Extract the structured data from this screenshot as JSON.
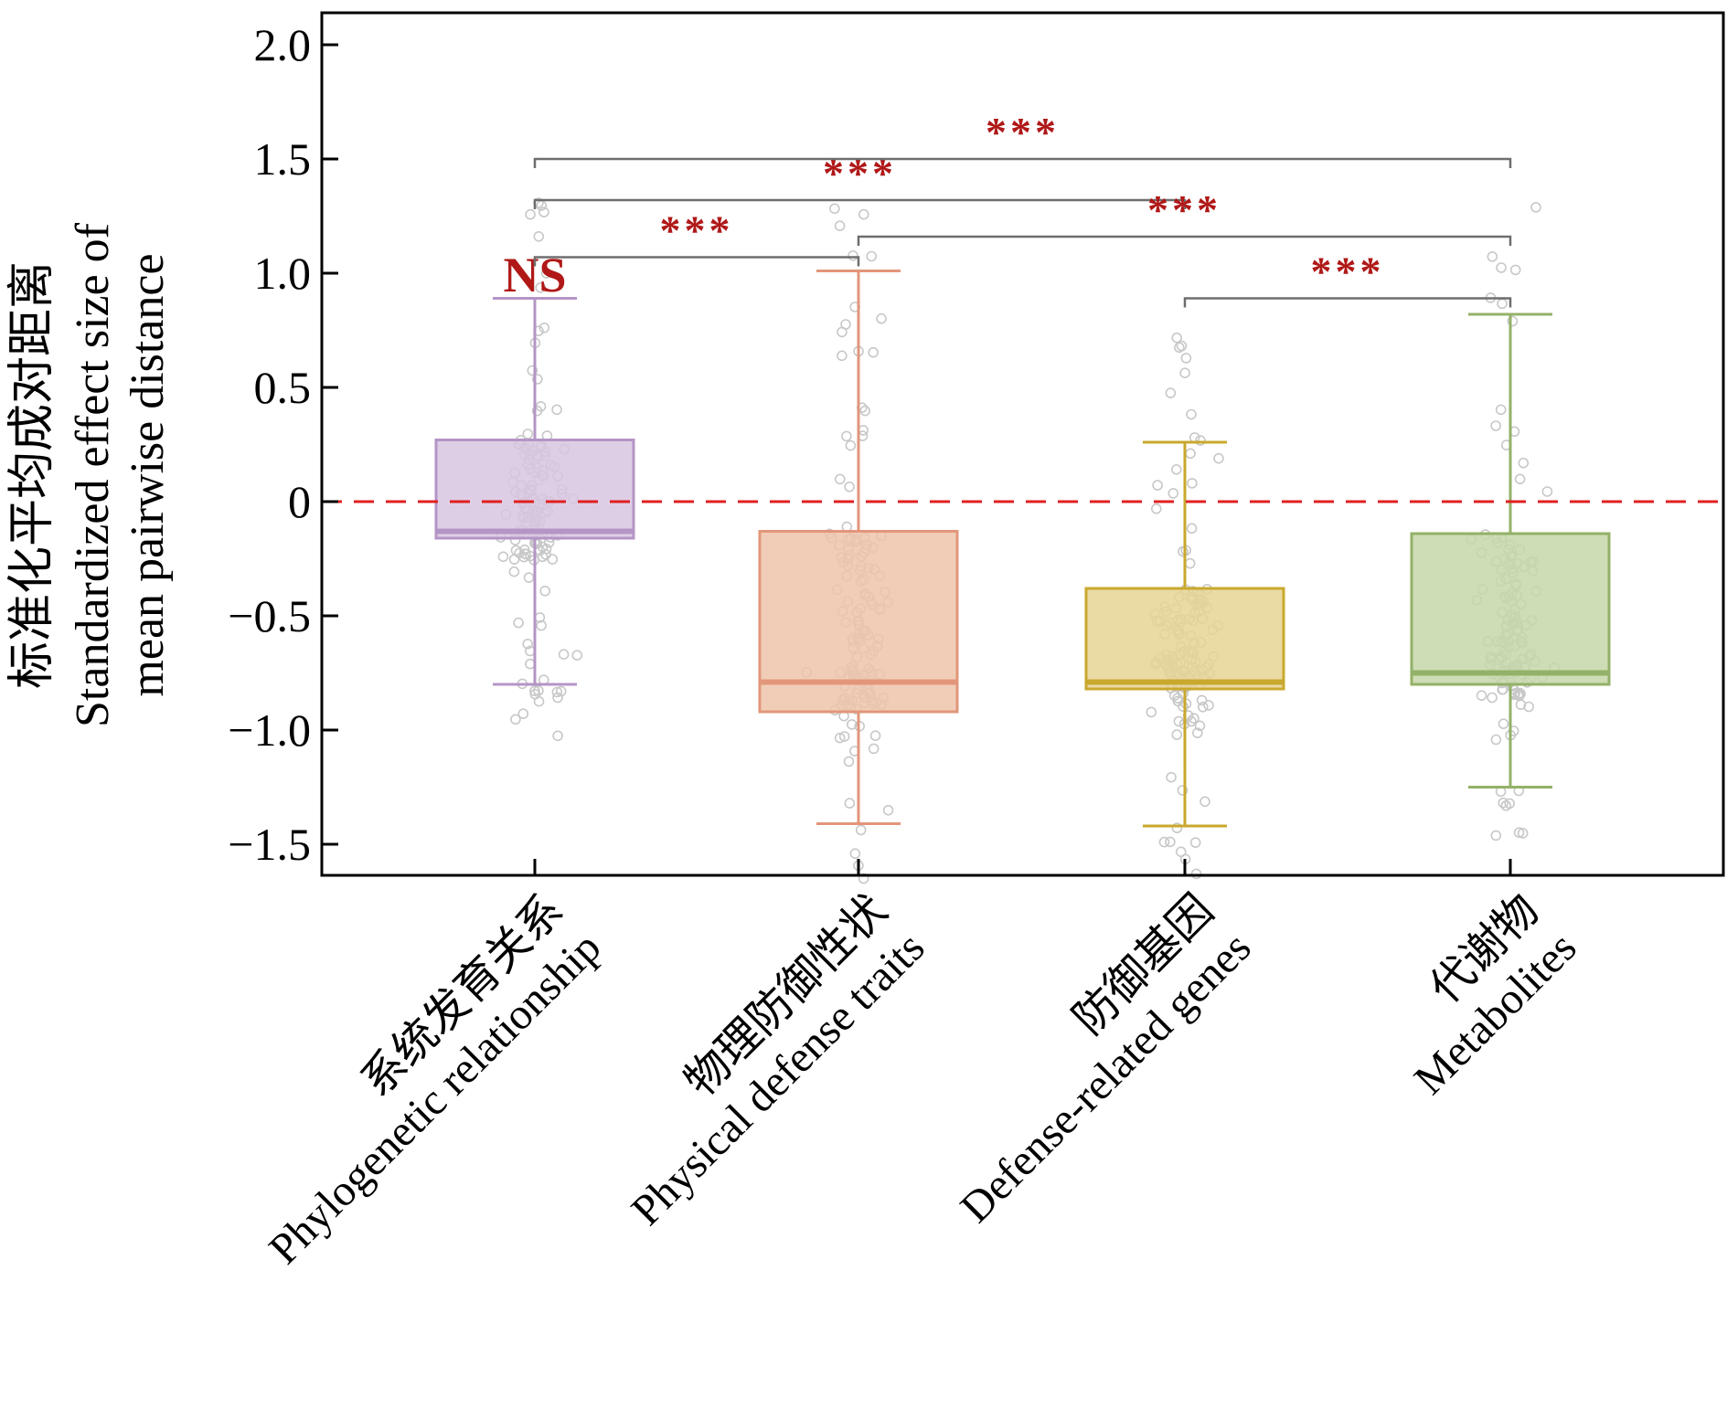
{
  "chart_data": {
    "type": "box",
    "ylabel_cn": "标准化平均成对距离",
    "ylabel_en_line1": "Standardized effect size of",
    "ylabel_en_line2": "mean pairwise distance",
    "ylim": [
      -1.65,
      2.12
    ],
    "yticks": [
      {
        "value": 2.0,
        "label": "2.0"
      },
      {
        "value": 1.5,
        "label": "1.5"
      },
      {
        "value": 1.0,
        "label": "1.0"
      },
      {
        "value": 0.5,
        "label": "0.5"
      },
      {
        "value": 0,
        "label": "0"
      },
      {
        "value": -0.5,
        "label": "−0.5"
      },
      {
        "value": -1.0,
        "label": "−1.0"
      },
      {
        "value": -1.5,
        "label": "−1.5"
      }
    ],
    "reference_line": {
      "value": 0,
      "color": "#e02020",
      "style": "dashed"
    },
    "categories": [
      {
        "cn": "系统发育关系",
        "en": "Phylogenetic relationship"
      },
      {
        "cn": "物理防御性状",
        "en": "Physical defense traits"
      },
      {
        "cn": "防御基因",
        "en": "Defense-related genes"
      },
      {
        "cn": "代谢物",
        "en": "Metabolites"
      }
    ],
    "boxes": [
      {
        "whisker_low": -0.8,
        "q1": -0.16,
        "median": -0.13,
        "q3": 0.27,
        "whisker_high": 0.89,
        "fill": "#d8c5e0",
        "stroke": "#b495c6"
      },
      {
        "whisker_low": -1.41,
        "q1": -0.92,
        "median": -0.79,
        "q3": -0.13,
        "whisker_high": 1.01,
        "fill": "#efc4ac",
        "stroke": "#e2967a"
      },
      {
        "whisker_low": -1.42,
        "q1": -0.82,
        "median": -0.79,
        "q3": -0.38,
        "whisker_high": 0.26,
        "fill": "#e6d394",
        "stroke": "#c9a82e"
      },
      {
        "whisker_low": -1.25,
        "q1": -0.8,
        "median": -0.75,
        "q3": -0.14,
        "whisker_high": 0.82,
        "fill": "#c6d7a8",
        "stroke": "#93b168"
      }
    ],
    "annotations": [
      {
        "type": "label",
        "text": "NS",
        "category": 0,
        "y": 0.92
      },
      {
        "type": "bracket",
        "from": 0,
        "to": 1,
        "y": 1.07,
        "text": "***"
      },
      {
        "type": "bracket",
        "from": 0,
        "to": 2,
        "y": 1.32,
        "text": "***"
      },
      {
        "type": "bracket",
        "from": 0,
        "to": 3,
        "y": 1.5,
        "text": "***"
      },
      {
        "type": "bracket",
        "from": 1,
        "to": 3,
        "y": 1.16,
        "text": "***"
      },
      {
        "type": "bracket",
        "from": 2,
        "to": 3,
        "y": 0.89,
        "text": "***"
      }
    ],
    "colors": {
      "sig": "#b01818",
      "bracket": "#6e6e6e",
      "points": "#c8c8c8"
    }
  }
}
